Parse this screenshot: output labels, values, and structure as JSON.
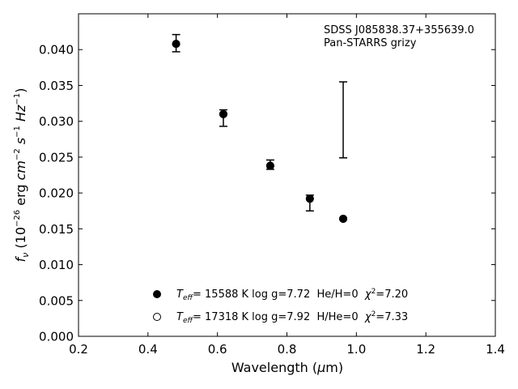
{
  "chart_data": {
    "type": "scatter",
    "title": "",
    "annotations": [
      "SDSS J085838.37+355639.0",
      "Pan-STARRS grizy"
    ],
    "xlabel": "Wavelength (μm)",
    "ylabel": "fν (10⁻²⁶ erg cm⁻² s⁻¹ Hz⁻¹)",
    "xlim": [
      0.2,
      1.4
    ],
    "ylim": [
      0.0,
      0.045
    ],
    "xticks": [
      "0.2",
      "0.4",
      "0.6",
      "0.8",
      "1.0",
      "1.2",
      "1.4"
    ],
    "yticks": [
      "0.000",
      "0.005",
      "0.010",
      "0.015",
      "0.020",
      "0.025",
      "0.030",
      "0.035",
      "0.040"
    ],
    "grid": false,
    "legend_position": "bottom-center",
    "observed": {
      "x": [
        0.481,
        0.617,
        0.752,
        0.866,
        0.962
      ],
      "y_low": [
        0.0397,
        0.0293,
        0.0233,
        0.0175,
        0.0249
      ],
      "y_high": [
        0.0421,
        0.0316,
        0.0246,
        0.0197,
        0.0355
      ]
    },
    "series": [
      {
        "name": "Teff= 15588 K  log g=7.72  He/H=0  χ²=7.20",
        "marker": "filled",
        "x": [
          0.481,
          0.617,
          0.752,
          0.866,
          0.962
        ],
        "y": [
          0.0408,
          0.031,
          0.0238,
          0.0192,
          0.0164
        ]
      },
      {
        "name": "Teff= 17318 K  log g=7.92  H/He=0  χ²=7.33",
        "marker": "open",
        "x": [
          0.481,
          0.617,
          0.752,
          0.866,
          0.962
        ],
        "y": [
          0.0408,
          0.031,
          0.0238,
          0.0192,
          0.0164
        ]
      }
    ],
    "legend": [
      {
        "marker": "filled",
        "teff": "15588",
        "logg": "7.72",
        "comp": "He/H=0",
        "chi2": "7.20"
      },
      {
        "marker": "open",
        "teff": "17318",
        "logg": "7.92",
        "comp": "H/He=0",
        "chi2": "7.33"
      }
    ]
  }
}
